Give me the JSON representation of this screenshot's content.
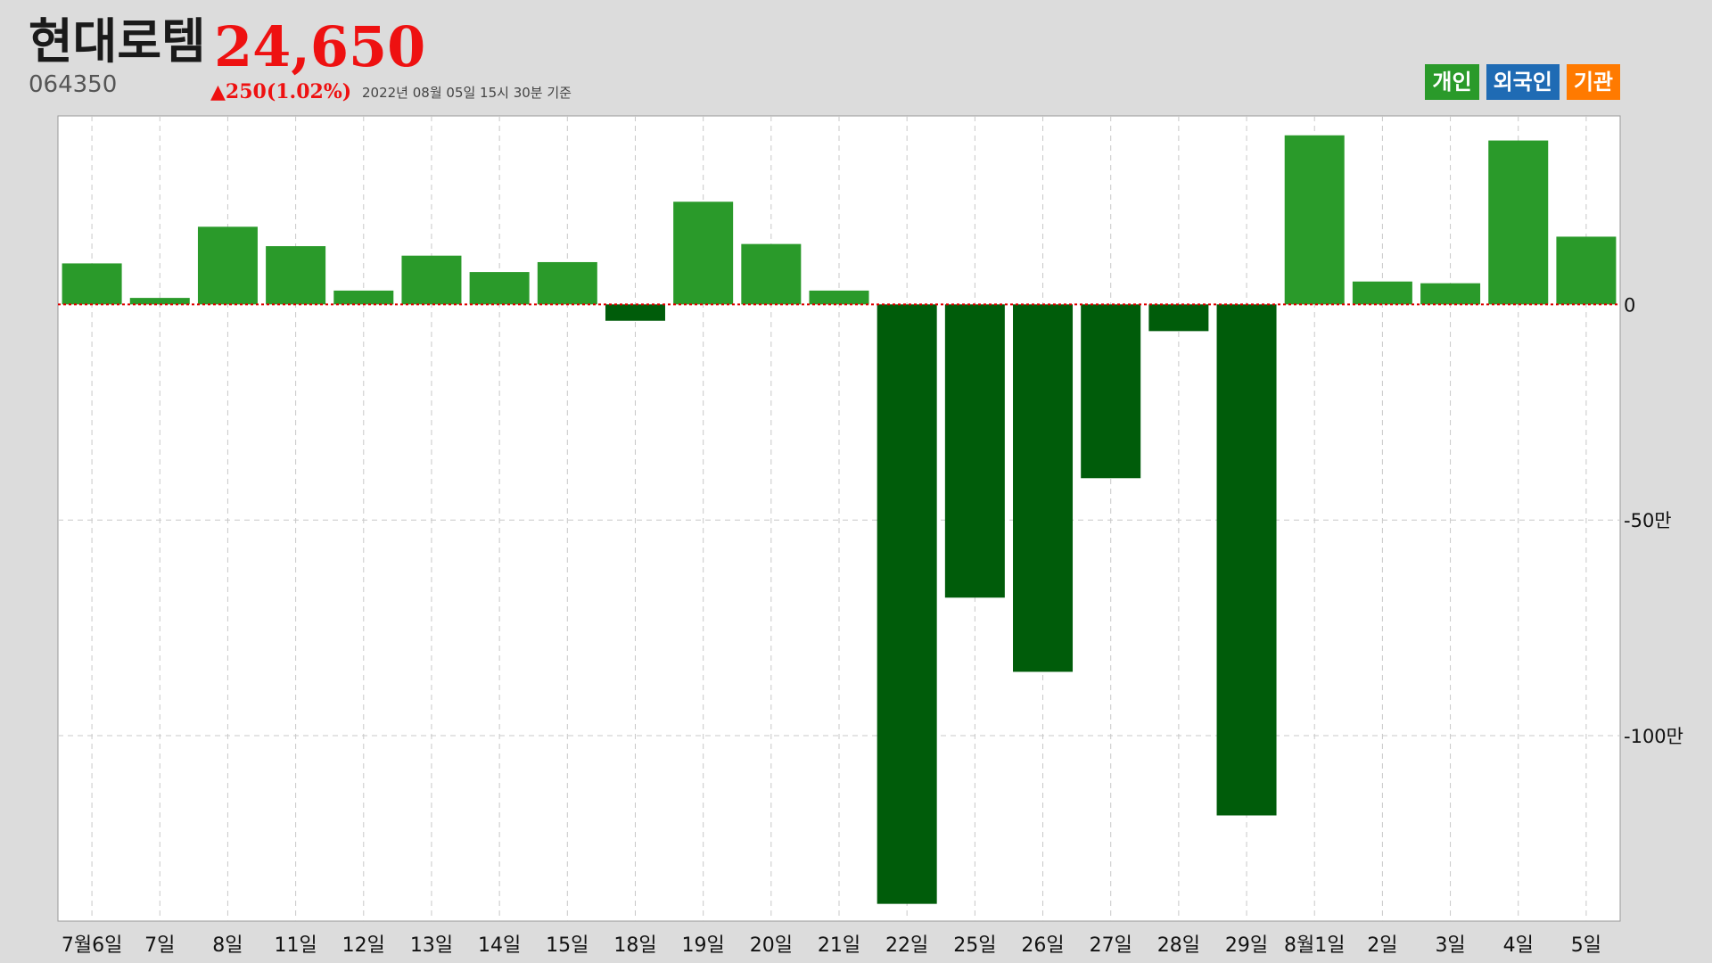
{
  "header": {
    "company": "현대로템",
    "price": "24,650",
    "code": "064350",
    "change": "▲250(1.02%)",
    "as_of": "2022년 08월 05일 15시 30분 기준"
  },
  "legend": [
    {
      "label": "개인",
      "color": "#2a9a2a"
    },
    {
      "label": "외국인",
      "color": "#1f6bb4"
    },
    {
      "label": "기관",
      "color": "#ff7a00"
    }
  ],
  "colors": {
    "positive_bar": "#2a9a2a",
    "negative_bar": "#005c0a",
    "zero_line": "#e00000",
    "grid": "#c8c8c8"
  },
  "chart_data": {
    "type": "bar",
    "categories": [
      "7월6일",
      "7일",
      "8일",
      "11일",
      "12일",
      "13일",
      "14일",
      "15일",
      "18일",
      "19일",
      "20일",
      "21일",
      "22일",
      "25일",
      "26일",
      "27일",
      "28일",
      "29일",
      "8월1일",
      "2일",
      "3일",
      "4일",
      "5일"
    ],
    "series": [
      {
        "values": [
          95000,
          15000,
          180000,
          135000,
          32000,
          113000,
          75000,
          98000,
          -38000,
          238000,
          140000,
          32000,
          -1390000,
          -680000,
          -852000,
          -403000,
          -62000,
          -1185000,
          392000,
          53000,
          49000,
          380000,
          157000
        ]
      }
    ],
    "ylim": [
      -1430000,
      437000
    ],
    "y_ticks": [
      {
        "value": 0,
        "label": "0"
      },
      {
        "value": -500000,
        "label": "-50만"
      },
      {
        "value": -1000000,
        "label": "-100만"
      }
    ],
    "grid": true
  }
}
